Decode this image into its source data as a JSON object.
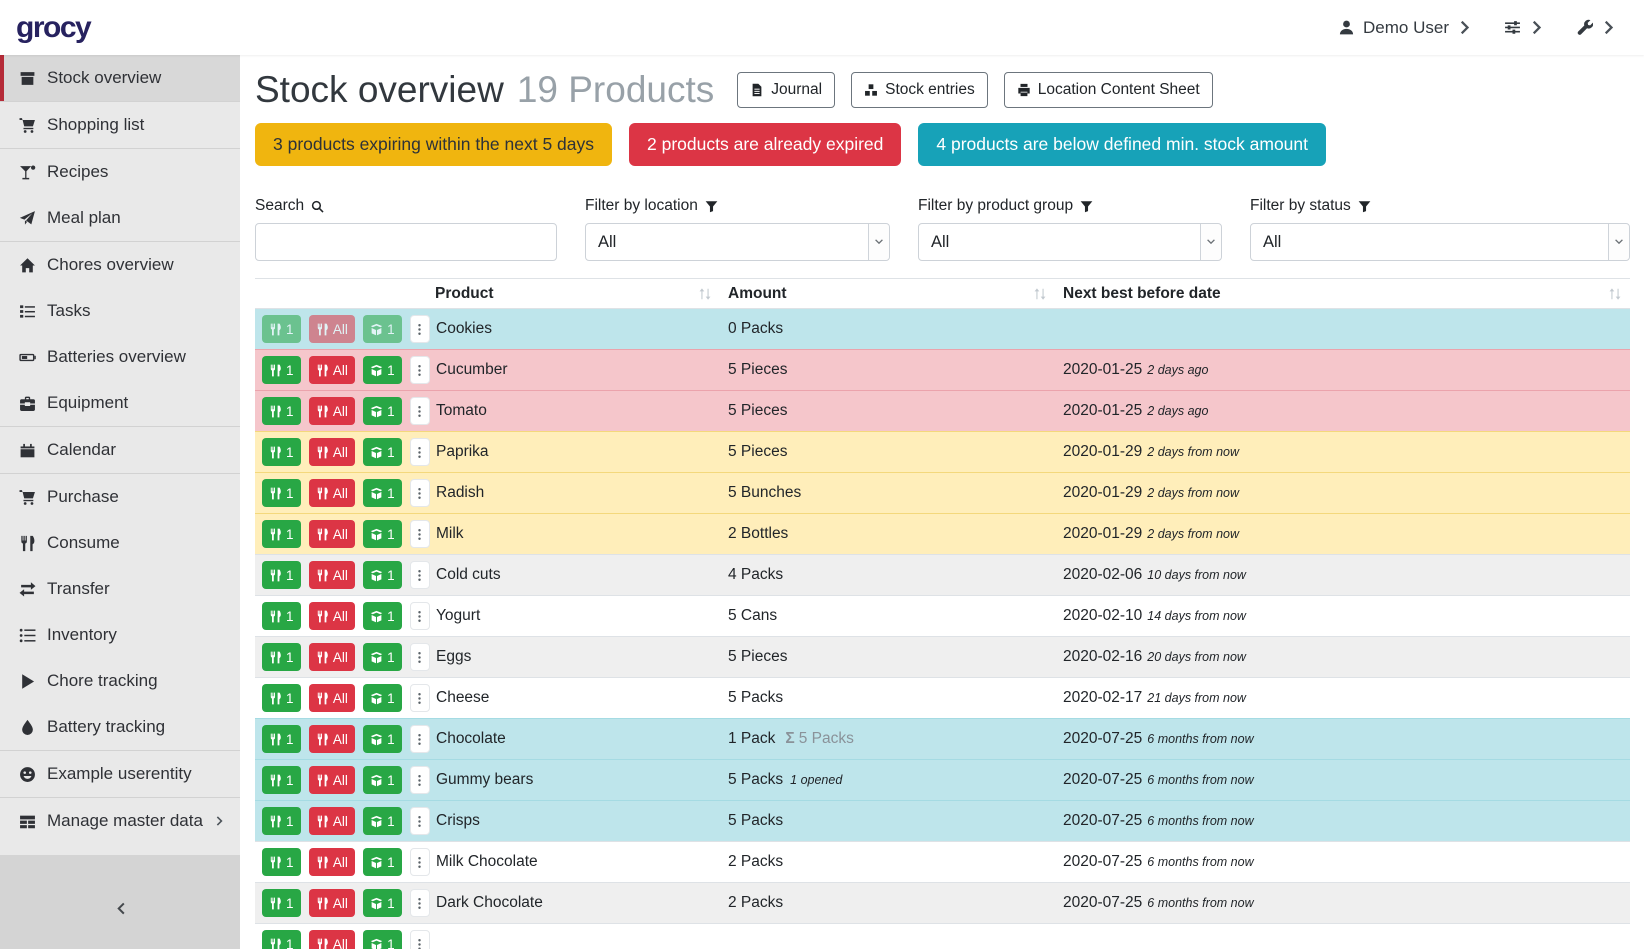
{
  "brand": {
    "logo_text": "grocy"
  },
  "topbar": {
    "user_label": "Demo User",
    "user_icon": "user-icon",
    "settings_icon": "sliders-icon",
    "config_icon": "wrench-icon",
    "chevron_icon": "chevron-right-icon"
  },
  "sidebar": {
    "collapse_icon": "chevron-left-icon",
    "items": [
      {
        "label": "Stock overview",
        "icon": "box-icon",
        "active": true,
        "divider_after": true
      },
      {
        "label": "Shopping list",
        "icon": "cart-icon",
        "divider_after": true
      },
      {
        "label": "Recipes",
        "icon": "cocktail-icon"
      },
      {
        "label": "Meal plan",
        "icon": "plane-icon",
        "divider_after": true
      },
      {
        "label": "Chores overview",
        "icon": "home-icon"
      },
      {
        "label": "Tasks",
        "icon": "tasks-icon"
      },
      {
        "label": "Batteries overview",
        "icon": "battery-icon"
      },
      {
        "label": "Equipment",
        "icon": "toolbox-icon",
        "divider_after": true
      },
      {
        "label": "Calendar",
        "icon": "calendar-icon",
        "divider_after": true
      },
      {
        "label": "Purchase",
        "icon": "cart-icon"
      },
      {
        "label": "Consume",
        "icon": "utensils-icon"
      },
      {
        "label": "Transfer",
        "icon": "exchange-icon"
      },
      {
        "label": "Inventory",
        "icon": "list-icon"
      },
      {
        "label": "Chore tracking",
        "icon": "play-icon"
      },
      {
        "label": "Battery tracking",
        "icon": "tint-icon",
        "divider_after": true
      },
      {
        "label": "Example userentity",
        "icon": "smiley-icon",
        "divider_after": true
      },
      {
        "label": "Manage master data",
        "icon": "table-icon",
        "submenu_icon": "chevron-right-icon"
      }
    ]
  },
  "header": {
    "title": "Stock overview",
    "subtitle": "19 Products",
    "buttons": [
      {
        "label": "Journal",
        "icon": "journal-icon"
      },
      {
        "label": "Stock entries",
        "icon": "boxes-icon"
      },
      {
        "label": "Location Content Sheet",
        "icon": "print-icon"
      }
    ]
  },
  "alerts": [
    {
      "text": "3 products expiring within the next 5 days",
      "type": "warning",
      "color": "#f0b50f"
    },
    {
      "text": "2 products are already expired",
      "type": "danger",
      "color": "#dc3545"
    },
    {
      "text": "4 products are below defined min. stock amount",
      "type": "info",
      "color": "#17a2b8"
    }
  ],
  "filters": {
    "search": {
      "label": "Search",
      "icon": "search-icon",
      "value": "",
      "placeholder": ""
    },
    "select_arrow_icon": "chevron-down-icon",
    "selects": [
      {
        "label": "Filter by location",
        "icon": "filter-icon",
        "value": "All"
      },
      {
        "label": "Filter by product group",
        "icon": "filter-icon",
        "value": "All"
      },
      {
        "label": "Filter by status",
        "icon": "filter-icon",
        "value": "All"
      }
    ]
  },
  "table": {
    "columns": [
      "Product",
      "Amount",
      "Next best before date"
    ],
    "sort_icon": "sort-icon",
    "sigma_symbol": "Σ",
    "actions": {
      "consume_one": "1",
      "consume_all": "All",
      "open_one": "1",
      "consume_icon": "utensils-icon",
      "open_icon": "box-open-icon",
      "more_icon": "ellipsis-icon"
    },
    "rows": [
      {
        "product": "Cookies",
        "amount": "0 Packs",
        "date": "",
        "relative": "",
        "status": "info",
        "actions_disabled": true
      },
      {
        "product": "Cucumber",
        "amount": "5 Pieces",
        "date": "2020-01-25",
        "relative": "2 days ago",
        "status": "danger"
      },
      {
        "product": "Tomato",
        "amount": "5 Pieces",
        "date": "2020-01-25",
        "relative": "2 days ago",
        "status": "danger"
      },
      {
        "product": "Paprika",
        "amount": "5 Pieces",
        "date": "2020-01-29",
        "relative": "2 days from now",
        "status": "warning"
      },
      {
        "product": "Radish",
        "amount": "5 Bunches",
        "date": "2020-01-29",
        "relative": "2 days from now",
        "status": "warning"
      },
      {
        "product": "Milk",
        "amount": "2 Bottles",
        "date": "2020-01-29",
        "relative": "2 days from now",
        "status": "warning"
      },
      {
        "product": "Cold cuts",
        "amount": "4 Packs",
        "date": "2020-02-06",
        "relative": "10 days from now",
        "status": ""
      },
      {
        "product": "Yogurt",
        "amount": "5 Cans",
        "date": "2020-02-10",
        "relative": "14 days from now",
        "status": ""
      },
      {
        "product": "Eggs",
        "amount": "5 Pieces",
        "date": "2020-02-16",
        "relative": "20 days from now",
        "status": ""
      },
      {
        "product": "Cheese",
        "amount": "5 Packs",
        "date": "2020-02-17",
        "relative": "21 days from now",
        "status": ""
      },
      {
        "product": "Chocolate",
        "amount": "1 Pack",
        "amount_sum": "5 Packs",
        "date": "2020-07-25",
        "relative": "6 months from now",
        "status": "info"
      },
      {
        "product": "Gummy bears",
        "amount": "5 Packs",
        "amount_opened": "1 opened",
        "date": "2020-07-25",
        "relative": "6 months from now",
        "status": "info"
      },
      {
        "product": "Crisps",
        "amount": "5 Packs",
        "date": "2020-07-25",
        "relative": "6 months from now",
        "status": "info"
      },
      {
        "product": "Milk Chocolate",
        "amount": "2 Packs",
        "date": "2020-07-25",
        "relative": "6 months from now",
        "status": ""
      },
      {
        "product": "Dark Chocolate",
        "amount": "2 Packs",
        "date": "2020-07-25",
        "relative": "6 months from now",
        "status": ""
      },
      {
        "product": "",
        "amount": "",
        "date": "",
        "relative": "",
        "status": "",
        "partial": true
      }
    ]
  },
  "colors": {
    "accent_red": "#b52b38",
    "logo_navy": "#27225f",
    "row_info": "#bee5eb",
    "row_danger": "#f5c6cb",
    "row_warning": "#ffeeba",
    "button_green": "#28a745",
    "button_red": "#dc3545"
  }
}
